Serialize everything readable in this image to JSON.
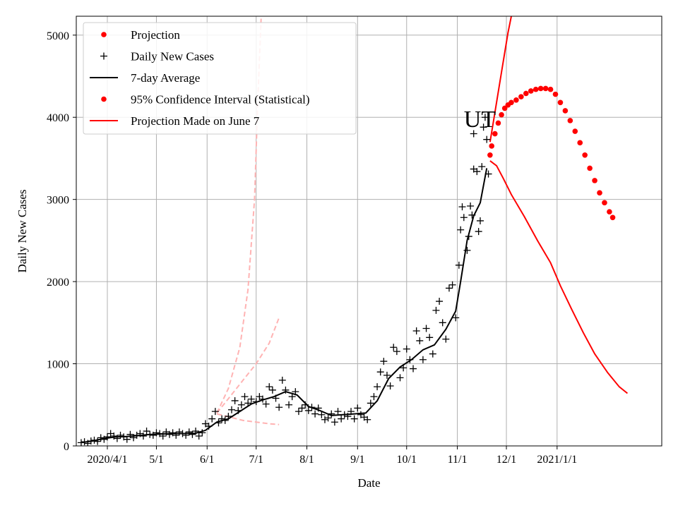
{
  "chart_data": {
    "type": "line",
    "xlabel": "Date",
    "ylabel": "Daily New Cases",
    "region_label": "UT",
    "x_axis": {
      "unit": "date",
      "range": [
        "2020-03-13",
        "2021-03-06"
      ],
      "ticks": [
        {
          "date": "2020-04-01",
          "label": "2020/4/1"
        },
        {
          "date": "2020-05-01",
          "label": "5/1"
        },
        {
          "date": "2020-06-01",
          "label": "6/1"
        },
        {
          "date": "2020-07-01",
          "label": "7/1"
        },
        {
          "date": "2020-08-01",
          "label": "8/1"
        },
        {
          "date": "2020-09-01",
          "label": "9/1"
        },
        {
          "date": "2020-10-01",
          "label": "10/1"
        },
        {
          "date": "2020-11-01",
          "label": "11/1"
        },
        {
          "date": "2020-12-01",
          "label": "12/1"
        },
        {
          "date": "2021-01-01",
          "label": "2021/1/1"
        }
      ]
    },
    "y_axis": {
      "range": [
        0,
        5230
      ],
      "ticks": [
        {
          "value": 0,
          "label": "0"
        },
        {
          "value": 1000,
          "label": "1000"
        },
        {
          "value": 2000,
          "label": "2000"
        },
        {
          "value": 3000,
          "label": "3000"
        },
        {
          "value": 4000,
          "label": "4000"
        },
        {
          "value": 5000,
          "label": "5000"
        }
      ]
    },
    "grid": true,
    "legend": {
      "position": "top-left",
      "entries": [
        {
          "label": "Projection",
          "marker": "dot",
          "color": "#ff0000"
        },
        {
          "label": "Daily New Cases",
          "marker": "plus",
          "color": "#000000"
        },
        {
          "label": "7-day Average",
          "marker": "line",
          "color": "#000000"
        },
        {
          "label": "95% Confidence Interval (Statistical)",
          "marker": "dot",
          "color": "#ff0000"
        },
        {
          "label": "Projection Made on June 7",
          "marker": "line",
          "color": "#ff0000"
        }
      ]
    },
    "colors": {
      "daily_cases": "#000000",
      "average": "#000000",
      "projection": "#ff0000",
      "june7_projection": "#ffb3b3",
      "grid": "#b0b0b0"
    },
    "series": [
      {
        "name": "Daily New Cases",
        "marker": "plus",
        "points": [
          [
            "2020-03-16",
            40
          ],
          [
            "2020-03-18",
            50
          ],
          [
            "2020-03-20",
            30
          ],
          [
            "2020-03-22",
            60
          ],
          [
            "2020-03-24",
            70
          ],
          [
            "2020-03-26",
            55
          ],
          [
            "2020-03-28",
            100
          ],
          [
            "2020-03-30",
            80
          ],
          [
            "2020-04-01",
            110
          ],
          [
            "2020-04-03",
            150
          ],
          [
            "2020-04-05",
            120
          ],
          [
            "2020-04-07",
            90
          ],
          [
            "2020-04-09",
            130
          ],
          [
            "2020-04-11",
            110
          ],
          [
            "2020-04-13",
            80
          ],
          [
            "2020-04-15",
            140
          ],
          [
            "2020-04-17",
            100
          ],
          [
            "2020-04-19",
            130
          ],
          [
            "2020-04-21",
            150
          ],
          [
            "2020-04-23",
            120
          ],
          [
            "2020-04-25",
            180
          ],
          [
            "2020-04-27",
            140
          ],
          [
            "2020-04-29",
            130
          ],
          [
            "2020-05-01",
            160
          ],
          [
            "2020-05-03",
            150
          ],
          [
            "2020-05-05",
            120
          ],
          [
            "2020-05-07",
            170
          ],
          [
            "2020-05-09",
            140
          ],
          [
            "2020-05-11",
            160
          ],
          [
            "2020-05-13",
            130
          ],
          [
            "2020-05-15",
            170
          ],
          [
            "2020-05-17",
            150
          ],
          [
            "2020-05-19",
            130
          ],
          [
            "2020-05-21",
            170
          ],
          [
            "2020-05-23",
            140
          ],
          [
            "2020-05-25",
            180
          ],
          [
            "2020-05-27",
            120
          ],
          [
            "2020-05-29",
            160
          ],
          [
            "2020-05-31",
            270
          ],
          [
            "2020-06-02",
            240
          ],
          [
            "2020-06-04",
            330
          ],
          [
            "2020-06-06",
            420
          ],
          [
            "2020-06-08",
            280
          ],
          [
            "2020-06-10",
            330
          ],
          [
            "2020-06-12",
            310
          ],
          [
            "2020-06-14",
            360
          ],
          [
            "2020-06-16",
            440
          ],
          [
            "2020-06-18",
            550
          ],
          [
            "2020-06-20",
            430
          ],
          [
            "2020-06-22",
            500
          ],
          [
            "2020-06-24",
            600
          ],
          [
            "2020-06-26",
            520
          ],
          [
            "2020-06-28",
            570
          ],
          [
            "2020-07-01",
            540
          ],
          [
            "2020-07-03",
            600
          ],
          [
            "2020-07-05",
            570
          ],
          [
            "2020-07-07",
            510
          ],
          [
            "2020-07-09",
            720
          ],
          [
            "2020-07-11",
            680
          ],
          [
            "2020-07-13",
            580
          ],
          [
            "2020-07-15",
            470
          ],
          [
            "2020-07-17",
            800
          ],
          [
            "2020-07-19",
            680
          ],
          [
            "2020-07-21",
            500
          ],
          [
            "2020-07-23",
            600
          ],
          [
            "2020-07-25",
            660
          ],
          [
            "2020-07-27",
            420
          ],
          [
            "2020-07-29",
            460
          ],
          [
            "2020-07-31",
            500
          ],
          [
            "2020-08-02",
            430
          ],
          [
            "2020-08-04",
            470
          ],
          [
            "2020-08-06",
            390
          ],
          [
            "2020-08-08",
            460
          ],
          [
            "2020-08-10",
            380
          ],
          [
            "2020-08-12",
            320
          ],
          [
            "2020-08-14",
            340
          ],
          [
            "2020-08-16",
            390
          ],
          [
            "2020-08-18",
            290
          ],
          [
            "2020-08-20",
            420
          ],
          [
            "2020-08-22",
            330
          ],
          [
            "2020-08-24",
            380
          ],
          [
            "2020-08-26",
            360
          ],
          [
            "2020-08-28",
            420
          ],
          [
            "2020-08-30",
            330
          ],
          [
            "2020-09-01",
            460
          ],
          [
            "2020-09-03",
            380
          ],
          [
            "2020-09-05",
            350
          ],
          [
            "2020-09-07",
            320
          ],
          [
            "2020-09-09",
            520
          ],
          [
            "2020-09-11",
            600
          ],
          [
            "2020-09-13",
            720
          ],
          [
            "2020-09-15",
            900
          ],
          [
            "2020-09-17",
            1030
          ],
          [
            "2020-09-19",
            860
          ],
          [
            "2020-09-21",
            730
          ],
          [
            "2020-09-23",
            1200
          ],
          [
            "2020-09-25",
            1150
          ],
          [
            "2020-09-27",
            830
          ],
          [
            "2020-09-29",
            950
          ],
          [
            "2020-10-01",
            1180
          ],
          [
            "2020-10-03",
            1050
          ],
          [
            "2020-10-05",
            940
          ],
          [
            "2020-10-07",
            1400
          ],
          [
            "2020-10-09",
            1280
          ],
          [
            "2020-10-11",
            1050
          ],
          [
            "2020-10-13",
            1430
          ],
          [
            "2020-10-15",
            1320
          ],
          [
            "2020-10-17",
            1120
          ],
          [
            "2020-10-19",
            1650
          ],
          [
            "2020-10-21",
            1760
          ],
          [
            "2020-10-23",
            1500
          ],
          [
            "2020-10-25",
            1300
          ],
          [
            "2020-10-27",
            1920
          ],
          [
            "2020-10-29",
            1960
          ],
          [
            "2020-10-31",
            1560
          ],
          [
            "2020-11-02",
            2200
          ],
          [
            "2020-11-03",
            2630
          ],
          [
            "2020-11-04",
            2910
          ],
          [
            "2020-11-05",
            2780
          ],
          [
            "2020-11-07",
            2380
          ],
          [
            "2020-11-08",
            2550
          ],
          [
            "2020-11-09",
            2920
          ],
          [
            "2020-11-10",
            2810
          ],
          [
            "2020-11-11",
            3370
          ],
          [
            "2020-11-11",
            3800
          ],
          [
            "2020-11-13",
            3340
          ],
          [
            "2020-11-14",
            2610
          ],
          [
            "2020-11-15",
            2740
          ],
          [
            "2020-11-16",
            3400
          ],
          [
            "2020-11-17",
            3880
          ],
          [
            "2020-11-18",
            4000
          ],
          [
            "2020-11-19",
            3730
          ],
          [
            "2020-11-20",
            3310
          ]
        ]
      },
      {
        "name": "7-day Average",
        "style": "line",
        "points": [
          [
            "2020-03-16",
            40
          ],
          [
            "2020-03-23",
            60
          ],
          [
            "2020-03-30",
            90
          ],
          [
            "2020-04-06",
            110
          ],
          [
            "2020-04-13",
            115
          ],
          [
            "2020-04-20",
            125
          ],
          [
            "2020-04-27",
            140
          ],
          [
            "2020-05-04",
            145
          ],
          [
            "2020-05-11",
            150
          ],
          [
            "2020-05-18",
            150
          ],
          [
            "2020-05-25",
            155
          ],
          [
            "2020-05-31",
            190
          ],
          [
            "2020-06-07",
            290
          ],
          [
            "2020-06-14",
            330
          ],
          [
            "2020-06-21",
            420
          ],
          [
            "2020-06-28",
            510
          ],
          [
            "2020-07-05",
            560
          ],
          [
            "2020-07-12",
            600
          ],
          [
            "2020-07-19",
            660
          ],
          [
            "2020-07-26",
            620
          ],
          [
            "2020-08-02",
            480
          ],
          [
            "2020-08-09",
            430
          ],
          [
            "2020-08-16",
            370
          ],
          [
            "2020-08-23",
            380
          ],
          [
            "2020-08-30",
            390
          ],
          [
            "2020-09-06",
            400
          ],
          [
            "2020-09-13",
            550
          ],
          [
            "2020-09-20",
            820
          ],
          [
            "2020-09-27",
            960
          ],
          [
            "2020-10-04",
            1050
          ],
          [
            "2020-10-11",
            1170
          ],
          [
            "2020-10-18",
            1230
          ],
          [
            "2020-10-25",
            1420
          ],
          [
            "2020-10-31",
            1640
          ],
          [
            "2020-11-03",
            2000
          ],
          [
            "2020-11-07",
            2500
          ],
          [
            "2020-11-11",
            2800
          ],
          [
            "2020-11-15",
            2960
          ],
          [
            "2020-11-19",
            3380
          ]
        ]
      },
      {
        "name": "Projection",
        "marker": "dot",
        "points": [
          [
            "2020-11-21",
            3540
          ],
          [
            "2020-11-22",
            3650
          ],
          [
            "2020-11-24",
            3800
          ],
          [
            "2020-11-26",
            3930
          ],
          [
            "2020-11-28",
            4030
          ],
          [
            "2020-11-30",
            4110
          ],
          [
            "2020-12-02",
            4150
          ],
          [
            "2020-12-04",
            4180
          ],
          [
            "2020-12-07",
            4210
          ],
          [
            "2020-12-10",
            4250
          ],
          [
            "2020-12-13",
            4290
          ],
          [
            "2020-12-16",
            4320
          ],
          [
            "2020-12-19",
            4340
          ],
          [
            "2020-12-22",
            4350
          ],
          [
            "2020-12-25",
            4350
          ],
          [
            "2020-12-28",
            4340
          ],
          [
            "2020-12-31",
            4280
          ],
          [
            "2021-01-03",
            4180
          ],
          [
            "2021-01-06",
            4080
          ],
          [
            "2021-01-09",
            3960
          ],
          [
            "2021-01-12",
            3830
          ],
          [
            "2021-01-15",
            3690
          ],
          [
            "2021-01-18",
            3540
          ],
          [
            "2021-01-21",
            3380
          ],
          [
            "2021-01-24",
            3230
          ],
          [
            "2021-01-27",
            3080
          ],
          [
            "2021-01-30",
            2960
          ],
          [
            "2021-02-02",
            2850
          ],
          [
            "2021-02-04",
            2780
          ]
        ]
      },
      {
        "name": "95% Confidence Interval (Statistical)",
        "style": "line",
        "bounds": {
          "upper": [
            [
              "2020-11-21",
              3700
            ],
            [
              "2020-11-24",
              4060
            ],
            [
              "2020-11-28",
              4550
            ],
            [
              "2020-12-02",
              5030
            ],
            [
              "2020-12-04",
              5230
            ]
          ],
          "lower": [
            [
              "2020-11-21",
              3470
            ],
            [
              "2020-11-25",
              3410
            ],
            [
              "2020-11-29",
              3260
            ],
            [
              "2020-12-04",
              3060
            ],
            [
              "2020-12-12",
              2790
            ],
            [
              "2020-12-20",
              2500
            ],
            [
              "2020-12-28",
              2230
            ],
            [
              "2021-01-03",
              1950
            ],
            [
              "2021-01-10",
              1660
            ],
            [
              "2021-01-17",
              1380
            ],
            [
              "2021-01-24",
              1120
            ],
            [
              "2021-02-01",
              890
            ],
            [
              "2021-02-08",
              720
            ],
            [
              "2021-02-13",
              640
            ]
          ]
        }
      },
      {
        "name": "Projection Made on June 7",
        "style": "dashed",
        "bounds": {
          "upper": [
            [
              "2020-06-07",
              400
            ],
            [
              "2020-06-14",
              700
            ],
            [
              "2020-06-21",
              1200
            ],
            [
              "2020-06-26",
              1900
            ],
            [
              "2020-06-30",
              3000
            ],
            [
              "2020-07-02",
              4200
            ],
            [
              "2020-07-04",
              5200
            ]
          ],
          "middle": [
            [
              "2020-06-07",
              400
            ],
            [
              "2020-06-15",
              600
            ],
            [
              "2020-06-23",
              800
            ],
            [
              "2020-07-01",
              1000
            ],
            [
              "2020-07-09",
              1250
            ],
            [
              "2020-07-15",
              1560
            ]
          ],
          "lower": [
            [
              "2020-06-07",
              390
            ],
            [
              "2020-06-15",
              350
            ],
            [
              "2020-06-23",
              310
            ],
            [
              "2020-07-01",
              290
            ],
            [
              "2020-07-09",
              270
            ],
            [
              "2020-07-15",
              260
            ]
          ]
        }
      }
    ]
  }
}
